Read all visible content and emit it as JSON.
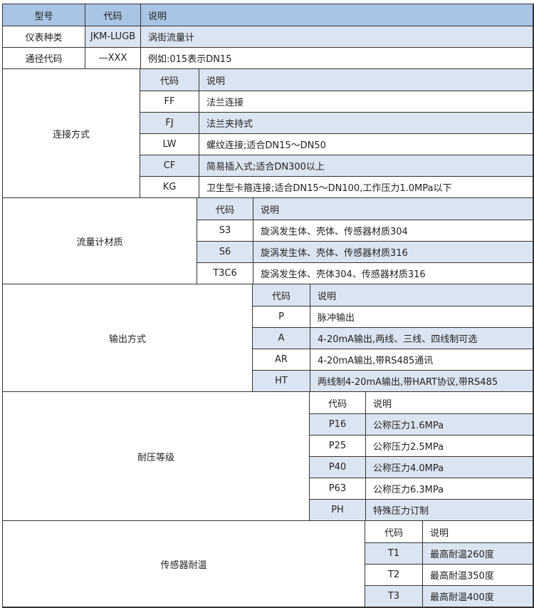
{
  "header": {
    "col1": "型号",
    "col2": "代码",
    "col3": "说明"
  },
  "top_rows": [
    {
      "name": "仪表种类",
      "code": "JKM-LUGB",
      "desc": "涡街流量计"
    },
    {
      "name": "通径代码",
      "code": "—XXX",
      "desc": "例如:015表示DN15"
    }
  ],
  "colors": {
    "header": "#a9c4e4",
    "stripe": "#dbe5f2",
    "border": "#333333"
  },
  "sections": [
    {
      "label": "连接方式",
      "sub_header": {
        "code": "代码",
        "desc": "说明"
      },
      "header_striped": true,
      "items": [
        {
          "code": "FF",
          "desc": "法兰连接"
        },
        {
          "code": "FJ",
          "desc": "法兰夹持式"
        },
        {
          "code": "LW",
          "desc": "螺纹连接;适合DN15～DN50"
        },
        {
          "code": "CF",
          "desc": "简易插入式;适合DN300以上"
        },
        {
          "code": "KG",
          "desc": "卫生型卡箍连接;适合DN15～DN100,工作压力1.0MPa以下"
        }
      ]
    },
    {
      "label": "流量计材质",
      "sub_header": {
        "code": "代码",
        "desc": "说明"
      },
      "header_striped": true,
      "items": [
        {
          "code": "S3",
          "desc": "旋涡发生体、壳体、传感器材质304"
        },
        {
          "code": "S6",
          "desc": "旋涡发生体、壳体、传感器材质316"
        },
        {
          "code": "T3C6",
          "desc": "旋涡发生体、壳体304、传感器材质316"
        }
      ]
    },
    {
      "label": "输出方式",
      "sub_header": {
        "code": "代码",
        "desc": "说明"
      },
      "header_striped": true,
      "items": [
        {
          "code": "P",
          "desc": "脉冲输出"
        },
        {
          "code": "A",
          "desc": "4-20mA输出,两线、三线、四线制可选"
        },
        {
          "code": "AR",
          "desc": "4-20mA输出,带RS485通讯"
        },
        {
          "code": "HT",
          "desc": "两线制4-20mA输出,带HART协议,带RS485"
        }
      ]
    },
    {
      "label": "耐压等级",
      "sub_header": {
        "code": "代码",
        "desc": "说明"
      },
      "header_striped": false,
      "items": [
        {
          "code": "P16",
          "desc": "公称压力1.6MPa"
        },
        {
          "code": "P25",
          "desc": "公称压力2.5MPa"
        },
        {
          "code": "P40",
          "desc": "公称压力4.0MPa"
        },
        {
          "code": "P63",
          "desc": "公称压力6.3MPa"
        },
        {
          "code": "PH",
          "desc": "特殊压力订制"
        }
      ]
    },
    {
      "label": "传感器耐温",
      "sub_header": {
        "code": "代码",
        "desc": "说明"
      },
      "header_striped": false,
      "items": [
        {
          "code": "T1",
          "desc": "最高耐温260度"
        },
        {
          "code": "T2",
          "desc": "最高耐温350度"
        },
        {
          "code": "T3",
          "desc": "最高耐温400度"
        }
      ]
    }
  ]
}
